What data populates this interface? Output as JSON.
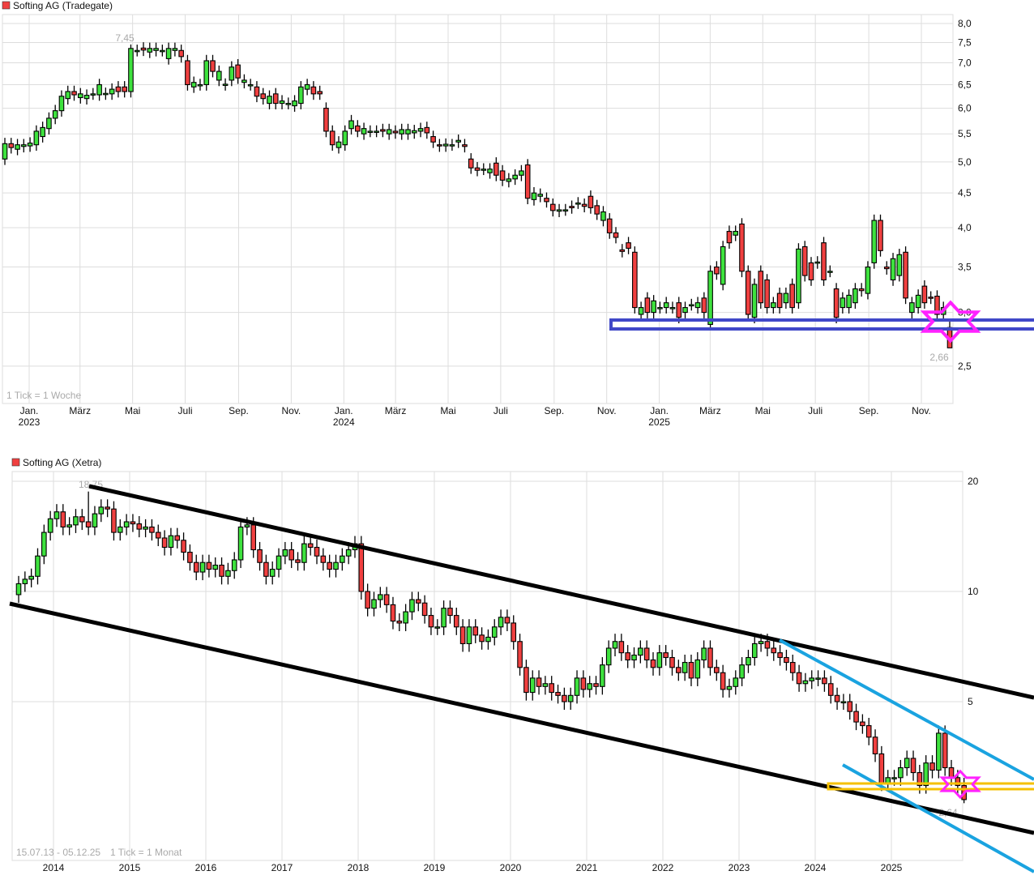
{
  "chart_data": [
    {
      "type": "candlestick",
      "title": "Softing AG (Tradegate)",
      "legend_color": "#f04040",
      "note": "1 Tick = 1 Woche",
      "interval": "week",
      "scale": "log",
      "ylim": [
        2.0,
        8.2
      ],
      "yticks": [
        {
          "v": 8.0,
          "label": "8,0"
        },
        {
          "v": 7.5,
          "label": "7,5"
        },
        {
          "v": 7.0,
          "label": "7,0"
        },
        {
          "v": 6.5,
          "label": "6,5"
        },
        {
          "v": 6.0,
          "label": "6,0"
        },
        {
          "v": 5.5,
          "label": "5,5"
        },
        {
          "v": 5.0,
          "label": "5,0"
        },
        {
          "v": 4.5,
          "label": "4,5"
        },
        {
          "v": 4.0,
          "label": "4,0"
        },
        {
          "v": 3.5,
          "label": "3,5"
        },
        {
          "v": 3.0,
          "label": "3,0"
        },
        {
          "v": 2.5,
          "label": "2,5"
        }
      ],
      "xticks": [
        {
          "date": "2023-01",
          "label": "Jan.",
          "sub": "2023"
        },
        {
          "date": "2023-03",
          "label": "März",
          "sub": ""
        },
        {
          "date": "2023-05",
          "label": "Mai",
          "sub": ""
        },
        {
          "date": "2023-07",
          "label": "Juli",
          "sub": ""
        },
        {
          "date": "2023-09",
          "label": "Sep.",
          "sub": ""
        },
        {
          "date": "2023-11",
          "label": "Nov.",
          "sub": ""
        },
        {
          "date": "2024-01",
          "label": "Jan.",
          "sub": "2024"
        },
        {
          "date": "2024-03",
          "label": "März",
          "sub": ""
        },
        {
          "date": "2024-05",
          "label": "Mai",
          "sub": ""
        },
        {
          "date": "2024-07",
          "label": "Juli",
          "sub": ""
        },
        {
          "date": "2024-09",
          "label": "Sep.",
          "sub": ""
        },
        {
          "date": "2024-11",
          "label": "Nov.",
          "sub": ""
        },
        {
          "date": "2025-01",
          "label": "Jan.",
          "sub": "2025"
        },
        {
          "date": "2025-03",
          "label": "März",
          "sub": ""
        },
        {
          "date": "2025-05",
          "label": "Mai",
          "sub": ""
        },
        {
          "date": "2025-07",
          "label": "Juli",
          "sub": ""
        },
        {
          "date": "2025-09",
          "label": "Sep.",
          "sub": ""
        },
        {
          "date": "2025-11",
          "label": "Nov.",
          "sub": ""
        }
      ],
      "max": {
        "value": 7.45,
        "label": "7,45",
        "index": 20
      },
      "min": {
        "value": 2.66,
        "label": "2,66"
      },
      "colors": {
        "up": "#3ee23e",
        "down": "#f04040",
        "support_box": "#4048c8",
        "star": "#ff22ff"
      },
      "open_close": [
        [
          5.05,
          5.32
        ],
        [
          5.32,
          5.25
        ],
        [
          5.22,
          5.3
        ],
        [
          5.27,
          5.3
        ],
        [
          5.28,
          5.33
        ],
        [
          5.3,
          5.55
        ],
        [
          5.45,
          5.62
        ],
        [
          5.6,
          5.8
        ],
        [
          5.8,
          5.95
        ],
        [
          5.95,
          6.25
        ],
        [
          6.2,
          6.35
        ],
        [
          6.35,
          6.28
        ],
        [
          6.22,
          6.3
        ],
        [
          6.2,
          6.27
        ],
        [
          6.3,
          6.3
        ],
        [
          6.28,
          6.5
        ],
        [
          6.3,
          6.31
        ],
        [
          6.3,
          6.4
        ],
        [
          6.45,
          6.35
        ],
        [
          6.45,
          6.35
        ],
        [
          6.35,
          7.35
        ],
        [
          7.3,
          7.3
        ],
        [
          7.36,
          7.31
        ],
        [
          7.26,
          7.35
        ],
        [
          7.3,
          7.35
        ],
        [
          7.3,
          7.3
        ],
        [
          7.1,
          7.35
        ],
        [
          7.3,
          7.35
        ],
        [
          7.3,
          7.15
        ],
        [
          7.05,
          6.5
        ],
        [
          6.45,
          6.55
        ],
        [
          6.5,
          6.5
        ],
        [
          6.5,
          7.05
        ],
        [
          7.05,
          6.8
        ],
        [
          6.6,
          6.8
        ],
        [
          6.5,
          6.51
        ],
        [
          6.6,
          6.9
        ],
        [
          6.95,
          6.65
        ],
        [
          6.55,
          6.6
        ],
        [
          6.5,
          6.5
        ],
        [
          6.45,
          6.25
        ],
        [
          6.3,
          6.2
        ],
        [
          6.1,
          6.25
        ],
        [
          6.3,
          6.1
        ],
        [
          6.1,
          6.15
        ],
        [
          6.1,
          6.1
        ],
        [
          6.05,
          6.15
        ],
        [
          6.1,
          6.45
        ],
        [
          6.4,
          6.5
        ],
        [
          6.45,
          6.3
        ],
        [
          6.35,
          6.3
        ],
        [
          6.0,
          5.55
        ],
        [
          5.55,
          5.3
        ],
        [
          5.25,
          5.35
        ],
        [
          5.3,
          5.55
        ],
        [
          5.6,
          5.75
        ],
        [
          5.65,
          5.55
        ],
        [
          5.5,
          5.6
        ],
        [
          5.55,
          5.55
        ],
        [
          5.55,
          5.55
        ],
        [
          5.58,
          5.55
        ],
        [
          5.5,
          5.58
        ],
        [
          5.55,
          5.52
        ],
        [
          5.5,
          5.58
        ],
        [
          5.5,
          5.58
        ],
        [
          5.52,
          5.56
        ],
        [
          5.55,
          5.6
        ],
        [
          5.62,
          5.52
        ],
        [
          5.45,
          5.35
        ],
        [
          5.3,
          5.28
        ],
        [
          5.28,
          5.31
        ],
        [
          5.3,
          5.3
        ],
        [
          5.35,
          5.38
        ],
        [
          5.3,
          5.27
        ],
        [
          5.05,
          4.9
        ],
        [
          4.9,
          4.86
        ],
        [
          4.88,
          4.88
        ],
        [
          4.82,
          4.88
        ],
        [
          4.98,
          4.78
        ],
        [
          4.85,
          4.7
        ],
        [
          4.68,
          4.72
        ],
        [
          4.72,
          4.78
        ],
        [
          4.78,
          4.85
        ],
        [
          4.95,
          4.42
        ],
        [
          4.4,
          4.5
        ],
        [
          4.45,
          4.48
        ],
        [
          4.42,
          4.37
        ],
        [
          4.33,
          4.24
        ],
        [
          4.23,
          4.25
        ],
        [
          4.25,
          4.25
        ],
        [
          4.3,
          4.28
        ],
        [
          4.35,
          4.35
        ],
        [
          4.33,
          4.3
        ],
        [
          4.45,
          4.28
        ],
        [
          4.31,
          4.19
        ],
        [
          4.1,
          4.22
        ],
        [
          4.12,
          3.93
        ],
        [
          3.93,
          3.87
        ],
        [
          3.71,
          3.69
        ],
        [
          3.8,
          3.73
        ],
        [
          3.68,
          3.05
        ],
        [
          2.98,
          3.05
        ],
        [
          3.15,
          3.0
        ],
        [
          3.0,
          3.12
        ],
        [
          3.05,
          3.05
        ],
        [
          3.05,
          3.1
        ],
        [
          3.05,
          3.05
        ],
        [
          3.1,
          2.95
        ],
        [
          3.0,
          3.05
        ],
        [
          3.08,
          3.08
        ],
        [
          3.05,
          3.1
        ],
        [
          3.15,
          3.0
        ],
        [
          2.88,
          3.45
        ],
        [
          3.5,
          3.42
        ],
        [
          3.3,
          3.75
        ],
        [
          3.95,
          3.8
        ],
        [
          3.9,
          3.95
        ],
        [
          4.05,
          3.45
        ],
        [
          3.45,
          2.98
        ],
        [
          2.95,
          3.3
        ],
        [
          3.45,
          3.1
        ],
        [
          3.35,
          3.05
        ],
        [
          3.05,
          3.1
        ],
        [
          3.2,
          3.05
        ],
        [
          3.1,
          3.2
        ],
        [
          3.3,
          3.05
        ],
        [
          3.1,
          3.72
        ],
        [
          3.75,
          3.4
        ],
        [
          3.55,
          3.35
        ],
        [
          3.55,
          3.56
        ],
        [
          3.8,
          3.35
        ],
        [
          3.45,
          3.45
        ],
        [
          3.25,
          2.95
        ],
        [
          3.05,
          3.15
        ],
        [
          3.05,
          3.18
        ],
        [
          3.1,
          3.25
        ],
        [
          3.25,
          3.23
        ],
        [
          3.2,
          3.5
        ],
        [
          3.55,
          4.1
        ],
        [
          4.1,
          3.7
        ],
        [
          3.5,
          3.48
        ],
        [
          3.35,
          3.6
        ],
        [
          3.4,
          3.65
        ],
        [
          3.68,
          3.15
        ],
        [
          3.0,
          3.1
        ],
        [
          3.05,
          3.18
        ],
        [
          3.28,
          3.1
        ],
        [
          3.16,
          3.15
        ],
        [
          3.17,
          2.98
        ],
        [
          2.98,
          3.05
        ],
        [
          2.85,
          2.66
        ]
      ]
    },
    {
      "type": "candlestick",
      "title": "Softing AG (Xetra)",
      "legend_color": "#f04040",
      "range_label": "15.07.13 - 05.12.25",
      "note": "1 Tick = 1 Monat",
      "interval": "month",
      "scale": "log",
      "yticks": [
        {
          "v": 20,
          "label": "20"
        },
        {
          "v": 10,
          "label": "10"
        },
        {
          "v": 5,
          "label": "5"
        }
      ],
      "xticks": [
        "2014",
        "2015",
        "2016",
        "2017",
        "2018",
        "2019",
        "2020",
        "2021",
        "2022",
        "2023",
        "2024",
        "2025"
      ],
      "max": {
        "value": 18.75,
        "label": "18,75",
        "index": 11
      },
      "min": {
        "value": 2.64,
        "label": "2,64"
      },
      "colors": {
        "up": "#3ee23e",
        "down": "#f04040",
        "channel": "#000000",
        "trend": "#1aa3e0",
        "support_box": "#f5c000",
        "star": "#ff22ff"
      },
      "monthly_close": [
        10.5,
        10.8,
        11.0,
        12.5,
        14.5,
        15.8,
        16.5,
        15.0,
        15.2,
        16.0,
        15.5,
        15.0,
        16.3,
        17.0,
        16.8,
        14.5,
        15.0,
        15.5,
        15.3,
        14.8,
        15.0,
        14.5,
        14.0,
        13.2,
        14.2,
        13.8,
        12.8,
        12.0,
        11.3,
        12.0,
        11.5,
        11.8,
        11.0,
        11.4,
        12.2,
        15.0,
        15.2,
        13.0,
        12.0,
        11.0,
        11.5,
        12.5,
        13.0,
        12.2,
        12.0,
        13.5,
        13.2,
        12.5,
        12.0,
        11.5,
        12.0,
        12.5,
        13.0,
        13.5,
        10.0,
        9.0,
        9.5,
        9.8,
        9.2,
        8.3,
        8.2,
        8.8,
        9.5,
        9.3,
        8.6,
        8.0,
        8.0,
        9.0,
        8.6,
        8.0,
        7.2,
        8.0,
        7.6,
        7.3,
        7.5,
        8.0,
        8.5,
        8.2,
        7.3,
        6.2,
        5.3,
        5.8,
        5.5,
        5.6,
        5.3,
        5.2,
        5.0,
        5.2,
        5.8,
        5.4,
        5.6,
        5.5,
        6.3,
        7.0,
        7.3,
        6.8,
        6.5,
        6.7,
        7.0,
        6.5,
        6.2,
        6.8,
        6.6,
        6.2,
        6.0,
        6.4,
        5.8,
        6.5,
        7.0,
        6.2,
        6.0,
        5.4,
        5.5,
        5.8,
        6.3,
        6.6,
        7.2,
        7.3,
        7.0,
        6.8,
        6.6,
        6.4,
        6.0,
        5.6,
        5.7,
        5.8,
        5.8,
        5.6,
        5.2,
        5.0,
        5.0,
        4.7,
        4.4,
        4.3,
        4.0,
        3.6,
        3.0,
        3.1,
        3.1,
        3.3,
        3.5,
        3.2,
        2.95,
        3.4,
        3.25,
        4.1,
        3.3,
        3.1,
        2.95,
        2.7
      ]
    }
  ]
}
